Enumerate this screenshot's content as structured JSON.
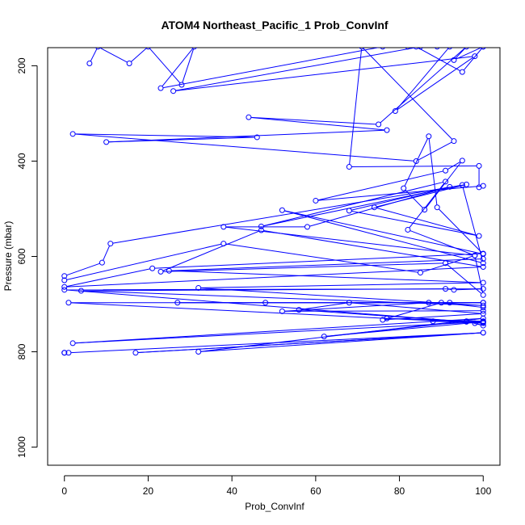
{
  "chart_data": {
    "type": "line",
    "title": "ATOM4 Northeast_Pacific_1 Prob_ConvInf",
    "xlabel": "Prob_ConvInf",
    "ylabel": "Pressure (mbar)",
    "xlim": [
      -4,
      104
    ],
    "ylim": [
      1038,
      162
    ],
    "y_reversed": true,
    "grid": false,
    "x_ticks": [
      0,
      20,
      40,
      60,
      80,
      100
    ],
    "y_ticks": [
      200,
      400,
      600,
      800,
      1000
    ],
    "series_color": "#0000ff",
    "marker": "open-circle",
    "series": [
      {
        "points": [
          [
            6,
            195
          ],
          [
            8,
            160
          ],
          [
            15.5,
            195
          ],
          [
            20,
            160
          ],
          [
            28,
            240
          ],
          [
            31,
            160
          ],
          [
            23,
            247
          ],
          [
            76,
            160
          ],
          [
            84,
            160
          ],
          [
            95,
            213
          ],
          [
            100,
            160
          ],
          [
            89,
            160
          ],
          [
            92,
            160
          ],
          [
            79,
            295
          ],
          [
            98,
            180
          ],
          [
            26,
            253
          ],
          [
            85,
            160
          ],
          [
            82,
            160
          ],
          [
            100,
            160
          ],
          [
            93,
            188
          ],
          [
            96,
            160
          ],
          [
            75,
            323
          ],
          [
            44,
            308
          ],
          [
            77,
            335
          ],
          [
            10,
            360
          ],
          [
            46,
            350
          ],
          [
            2,
            343
          ],
          [
            84,
            400
          ],
          [
            93,
            358
          ],
          [
            71,
            160
          ],
          [
            68,
            412
          ],
          [
            99,
            410
          ],
          [
            99,
            455
          ],
          [
            100,
            452
          ],
          [
            60,
            483
          ],
          [
            91,
            420
          ],
          [
            95,
            399
          ],
          [
            86,
            502
          ],
          [
            81,
            457
          ],
          [
            87,
            348
          ],
          [
            89,
            497
          ],
          [
            100,
            595
          ],
          [
            52,
            503
          ],
          [
            100,
            614
          ],
          [
            95,
            450
          ],
          [
            47,
            537
          ],
          [
            91,
            443
          ],
          [
            82,
            544
          ],
          [
            98,
            598
          ],
          [
            38,
            538
          ],
          [
            58,
            538
          ],
          [
            92,
            454
          ],
          [
            68,
            504
          ],
          [
            99,
            557
          ],
          [
            74,
            497
          ],
          [
            96,
            449
          ],
          [
            11,
            573
          ],
          [
            9,
            613
          ],
          [
            0,
            641
          ],
          [
            0,
            650
          ],
          [
            38,
            573
          ],
          [
            85,
            634
          ],
          [
            98,
            598
          ],
          [
            100,
            681
          ],
          [
            91,
            614
          ],
          [
            23,
            632
          ],
          [
            47,
            545
          ],
          [
            100,
            622
          ],
          [
            0,
            664
          ],
          [
            21,
            625
          ],
          [
            100,
            594
          ],
          [
            100,
            605
          ],
          [
            25,
            630
          ],
          [
            100,
            655
          ],
          [
            32,
            666
          ],
          [
            100,
            703
          ],
          [
            4,
            672
          ],
          [
            91,
            668
          ],
          [
            93,
            670
          ],
          [
            100,
            668
          ],
          [
            0,
            670
          ],
          [
            100,
            740
          ],
          [
            1,
            697
          ],
          [
            48,
            697
          ],
          [
            100,
            697
          ],
          [
            27,
            697
          ],
          [
            92,
            697
          ],
          [
            100,
            697
          ],
          [
            87,
            697
          ],
          [
            52,
            715
          ],
          [
            100,
            714
          ],
          [
            100,
            707
          ],
          [
            90,
            697
          ],
          [
            76,
            733
          ],
          [
            100,
            720
          ],
          [
            68,
            697
          ],
          [
            56,
            712
          ],
          [
            96,
            737
          ],
          [
            77,
            730
          ],
          [
            100,
            736
          ],
          [
            100,
            737
          ],
          [
            88,
            736
          ],
          [
            100,
            738
          ],
          [
            98,
            740
          ],
          [
            100,
            745
          ],
          [
            96,
            736
          ],
          [
            62,
            768
          ],
          [
            100,
            737
          ],
          [
            2,
            782
          ],
          [
            100,
            730
          ],
          [
            32,
            800
          ],
          [
            100,
            760
          ],
          [
            17,
            802
          ],
          [
            100,
            760
          ],
          [
            1,
            802
          ],
          [
            0,
            802
          ],
          [
            0,
            802
          ]
        ]
      }
    ]
  }
}
